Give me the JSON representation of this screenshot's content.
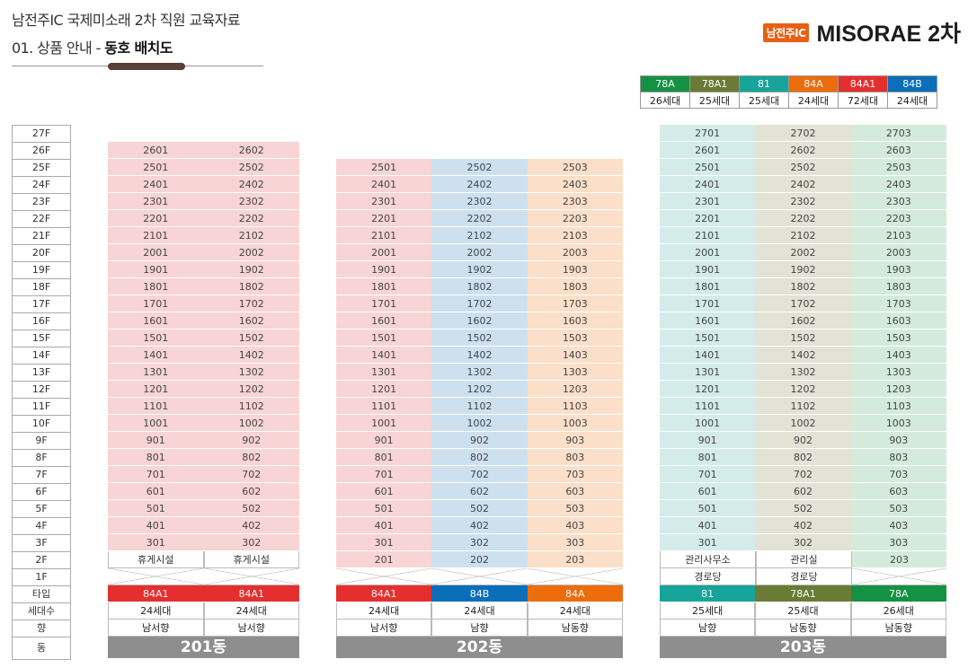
{
  "header": {
    "title": "남전주IC 국제미소래 2차 직원 교육자료",
    "sub_prefix": "01. 상품 안내 - ",
    "sub_bold": "동호 배치도",
    "brand_badge": "남전주IC",
    "brand_name": "MISORAE 2차"
  },
  "colors": {
    "84A1": "#e52f2f",
    "84B": "#0a6eb9",
    "84A": "#ed6c0c",
    "81": "#17a49a",
    "78A1": "#6b7a35",
    "78A": "#149142"
  },
  "legend": [
    {
      "type": "78A",
      "count": "26세대"
    },
    {
      "type": "78A1",
      "count": "25세대"
    },
    {
      "type": "81",
      "count": "25세대"
    },
    {
      "type": "84A",
      "count": "24세대"
    },
    {
      "type": "84A1",
      "count": "72세대"
    },
    {
      "type": "84B",
      "count": "24세대"
    }
  ],
  "floors": [
    "27F",
    "26F",
    "25F",
    "24F",
    "23F",
    "22F",
    "21F",
    "20F",
    "19F",
    "18F",
    "17F",
    "16F",
    "15F",
    "14F",
    "13F",
    "12F",
    "11F",
    "10F",
    "9F",
    "8F",
    "7F",
    "6F",
    "5F",
    "4F",
    "3F",
    "2F",
    "1F"
  ],
  "row_labels": {
    "type": "타입",
    "units": "세대수",
    "direction": "향",
    "building": "동"
  },
  "buildings": [
    {
      "name": "201동",
      "columns": [
        {
          "line": "01",
          "top": 26,
          "bg": "#f8d4d4",
          "floor2": "휴게시설",
          "floor1": "",
          "type": "84A1",
          "units": "24세대",
          "direction": "남서향"
        },
        {
          "line": "02",
          "top": 26,
          "bg": "#f8d4d4",
          "floor2": "휴게시설",
          "floor1": "",
          "type": "84A1",
          "units": "24세대",
          "direction": "남서향"
        }
      ]
    },
    {
      "name": "202동",
      "columns": [
        {
          "line": "01",
          "top": 25,
          "bg": "#f8d4d4",
          "floor2": "201",
          "floor1": "",
          "type": "84A1",
          "units": "24세대",
          "direction": "남서향"
        },
        {
          "line": "02",
          "top": 25,
          "bg": "#cde0f0",
          "floor2": "202",
          "floor1": "",
          "type": "84B",
          "units": "24세대",
          "direction": "남향"
        },
        {
          "line": "03",
          "top": 25,
          "bg": "#fbdfc9",
          "floor2": "203",
          "floor1": "",
          "type": "84A",
          "units": "24세대",
          "direction": "남동향"
        }
      ]
    },
    {
      "name": "203동",
      "columns": [
        {
          "line": "01",
          "top": 27,
          "bg": "#d3ecea",
          "floor2": "관리사무소",
          "floor1": "경로당",
          "type": "81",
          "units": "25세대",
          "direction": "남향"
        },
        {
          "line": "02",
          "top": 27,
          "bg": "#e2e2d5",
          "floor2": "관리실",
          "floor1": "경로당",
          "type": "78A1",
          "units": "25세대",
          "direction": "남동향"
        },
        {
          "line": "03",
          "top": 27,
          "bg": "#d4ebdc",
          "floor2": "203",
          "floor1": "",
          "type": "78A",
          "units": "26세대",
          "direction": "남동향"
        }
      ]
    }
  ]
}
